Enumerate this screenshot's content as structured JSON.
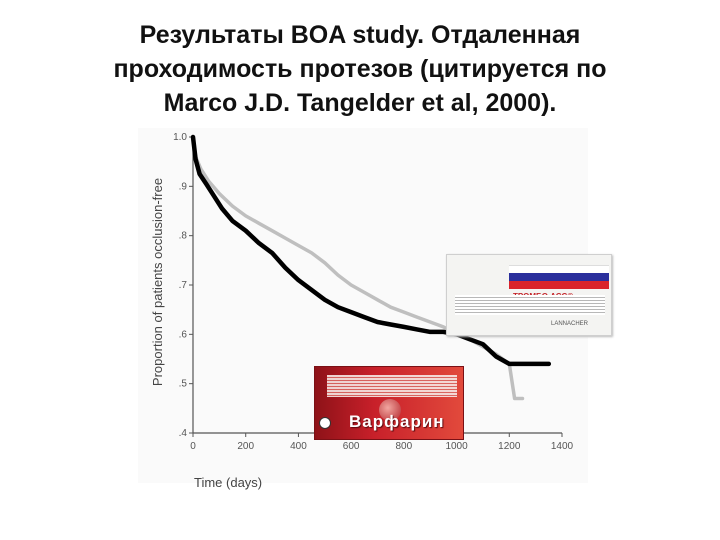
{
  "slide": {
    "title_lines": [
      "Результаты BOA study. Отдаленная",
      "проходимость протезов (цитируется по",
      "Marco J.D. Tangelder et al, 2000)."
    ]
  },
  "images": {
    "box_brand": "ТРОМБО АСС®",
    "box_maker": "LANNACHER",
    "red_pack_name": "Варфарин"
  },
  "chart_data": {
    "type": "line",
    "xlabel": "Time (days)",
    "ylabel": "Proportion of patients occlusion-free",
    "xlim": [
      0,
      1400
    ],
    "ylim": [
      0.4,
      1.0
    ],
    "x_ticks": [
      "0",
      "200",
      "400",
      "600",
      "800",
      "1000",
      "1200",
      "1400"
    ],
    "y_ticks": [
      "1.0",
      ".9",
      ".8",
      ".7",
      ".6",
      ".5",
      ".4"
    ],
    "grid": false,
    "series": [
      {
        "color": "#000000",
        "points": [
          [
            0,
            1.0
          ],
          [
            10,
            0.955
          ],
          [
            25,
            0.925
          ],
          [
            50,
            0.905
          ],
          [
            80,
            0.88
          ],
          [
            110,
            0.855
          ],
          [
            150,
            0.83
          ],
          [
            200,
            0.81
          ],
          [
            250,
            0.785
          ],
          [
            300,
            0.765
          ],
          [
            350,
            0.735
          ],
          [
            400,
            0.71
          ],
          [
            450,
            0.69
          ],
          [
            500,
            0.67
          ],
          [
            550,
            0.655
          ],
          [
            600,
            0.645
          ],
          [
            650,
            0.635
          ],
          [
            700,
            0.625
          ],
          [
            750,
            0.62
          ],
          [
            800,
            0.615
          ],
          [
            850,
            0.61
          ],
          [
            900,
            0.605
          ],
          [
            950,
            0.605
          ],
          [
            1000,
            0.6
          ],
          [
            1050,
            0.59
          ],
          [
            1100,
            0.58
          ],
          [
            1150,
            0.555
          ],
          [
            1200,
            0.54
          ],
          [
            1250,
            0.54
          ],
          [
            1300,
            0.54
          ],
          [
            1350,
            0.54
          ]
        ]
      },
      {
        "color": "#bfbfbf",
        "points": [
          [
            0,
            1.0
          ],
          [
            10,
            0.96
          ],
          [
            30,
            0.935
          ],
          [
            60,
            0.91
          ],
          [
            100,
            0.885
          ],
          [
            150,
            0.86
          ],
          [
            200,
            0.84
          ],
          [
            250,
            0.825
          ],
          [
            300,
            0.81
          ],
          [
            350,
            0.795
          ],
          [
            400,
            0.78
          ],
          [
            450,
            0.765
          ],
          [
            500,
            0.745
          ],
          [
            550,
            0.72
          ],
          [
            600,
            0.7
          ],
          [
            650,
            0.685
          ],
          [
            700,
            0.67
          ],
          [
            750,
            0.655
          ],
          [
            800,
            0.645
          ],
          [
            850,
            0.635
          ],
          [
            900,
            0.625
          ],
          [
            950,
            0.615
          ],
          [
            1000,
            0.6
          ],
          [
            1050,
            0.59
          ],
          [
            1100,
            0.575
          ],
          [
            1150,
            0.56
          ],
          [
            1200,
            0.54
          ],
          [
            1220,
            0.47
          ],
          [
            1250,
            0.47
          ]
        ]
      }
    ]
  }
}
